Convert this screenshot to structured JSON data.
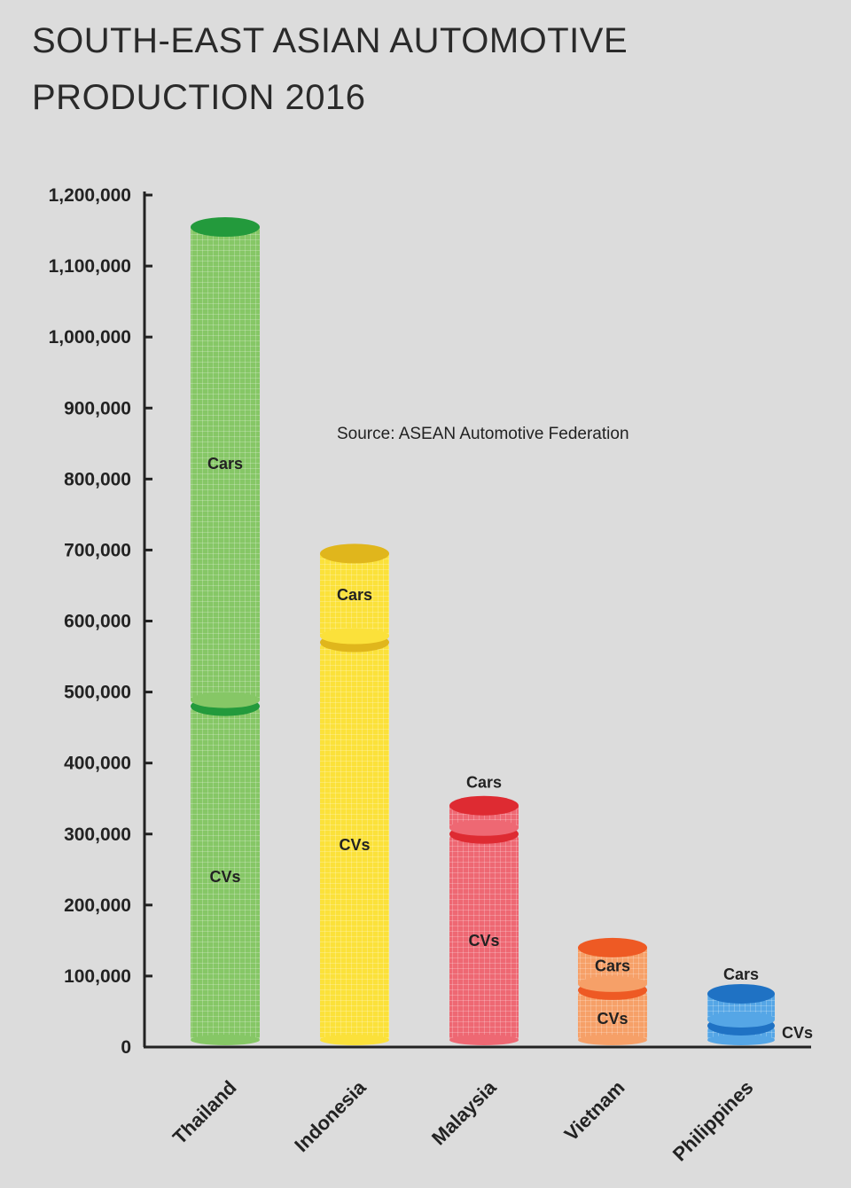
{
  "chart_data": {
    "type": "bar",
    "stacked": true,
    "title": "SOUTH-EAST ASIAN AUTOMOTIVE PRODUCTION 2016",
    "title_lines": [
      "SOUTH-EAST ASIAN AUTOMOTIVE",
      "PRODUCTION 2016"
    ],
    "source_note": "Source: ASEAN Automotive Federation",
    "categories": [
      "Thailand",
      "Indonesia",
      "Malaysia",
      "Vietnam",
      "Philippines"
    ],
    "series": [
      {
        "name": "CVs",
        "values": [
          480000,
          570000,
          300000,
          80000,
          30000
        ]
      },
      {
        "name": "Cars",
        "values": [
          675000,
          125000,
          40000,
          60000,
          45000
        ]
      }
    ],
    "ylim": [
      0,
      1200000
    ],
    "yticks": [
      0,
      100000,
      200000,
      300000,
      400000,
      500000,
      600000,
      700000,
      800000,
      900000,
      1000000,
      1100000,
      1200000
    ],
    "ytick_labels": [
      "0",
      "100,000",
      "200,000",
      "300,000",
      "400,000",
      "500,000",
      "600,000",
      "700,000",
      "800,000",
      "900,000",
      "1,000,000",
      "1,100,000",
      "1,200,000"
    ],
    "colors": {
      "Thailand": {
        "body": "#86c766",
        "cap": "#239a3c"
      },
      "Indonesia": {
        "body": "#fbe13a",
        "cap": "#e0b61c"
      },
      "Malaysia": {
        "body": "#ee6873",
        "cap": "#de2b32"
      },
      "Vietnam": {
        "body": "#f6a068",
        "cap": "#ee5a24"
      },
      "Philippines": {
        "body": "#55a6e6",
        "cap": "#1f72c4"
      }
    }
  }
}
